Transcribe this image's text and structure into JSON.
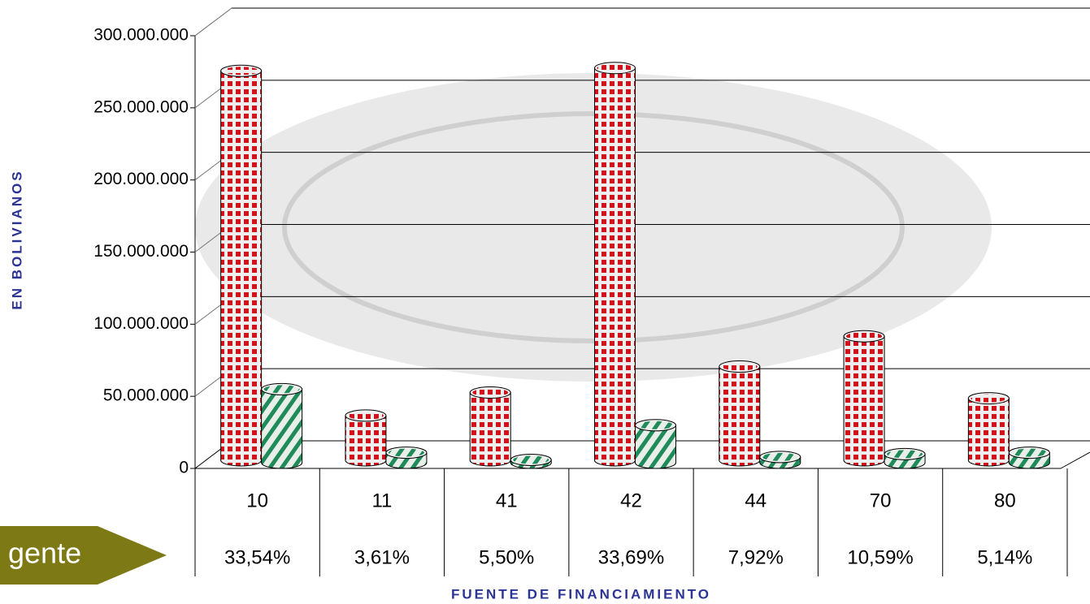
{
  "chart_data": {
    "type": "bar3d",
    "y_axis_label": "EN BOLIVIANOS",
    "x_axis_label": "FUENTE DE FINANCIAMIENTO",
    "categories": [
      "10",
      "11",
      "41",
      "42",
      "44",
      "70",
      "80"
    ],
    "share_labels": [
      "33,54%",
      "3,61%",
      "5,50%",
      "33,69%",
      "7,92%",
      "10,59%",
      "5,14%"
    ],
    "series": [
      {
        "color": "#d0121b",
        "pattern": "checker",
        "values": [
          270000000,
          31000000,
          47000000,
          272000000,
          65000000,
          86000000,
          43000000
        ]
      },
      {
        "color": "#1f8a5a",
        "pattern": "stripes",
        "values": [
          51000000,
          7000000,
          2000000,
          26000000,
          4000000,
          6000000,
          7000000
        ]
      }
    ],
    "ylim": [
      0,
      300000000
    ],
    "yticks": [
      0,
      {
        "value": 50000000,
        "label": "50.000.000"
      },
      {
        "value": 100000000,
        "label": "100.000.000"
      },
      {
        "value": 150000000,
        "label": "150.000.000"
      },
      {
        "value": 200000000,
        "label": "200.000.000"
      },
      {
        "value": 250000000,
        "label": "250.000.000"
      },
      {
        "value": 300000000,
        "label": "300.000.000"
      }
    ],
    "grid": true
  },
  "sidebar_label": "gente"
}
